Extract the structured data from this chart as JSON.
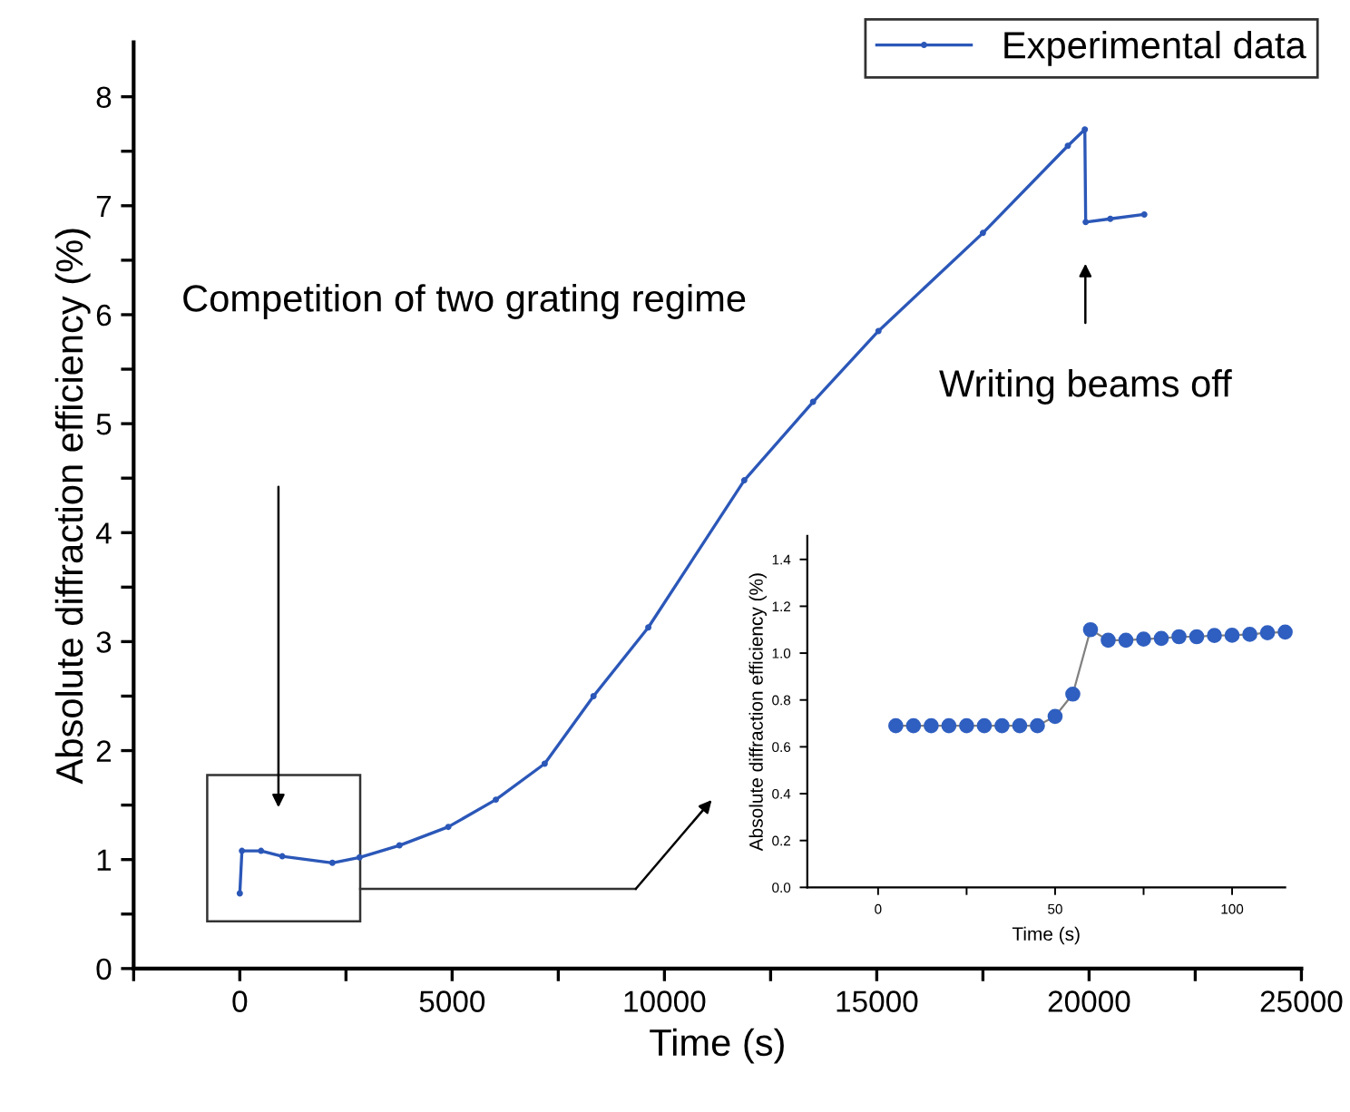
{
  "chart_data": [
    {
      "type": "line",
      "xlabel": "Time (s)",
      "ylabel": "Absolute diffraction efficiency (%)",
      "series": [
        {
          "name": "Experimental data",
          "color": "#2b57b8",
          "x": [
            0,
            50,
            500,
            1000,
            2180,
            2820,
            3760,
            4910,
            6030,
            7180,
            8330,
            9620,
            11880,
            13500,
            15040,
            17500,
            19500,
            19900,
            19920,
            20500,
            21300
          ],
          "values": [
            0.69,
            1.08,
            1.08,
            1.03,
            0.97,
            1.02,
            1.13,
            1.3,
            1.55,
            1.88,
            2.5,
            3.13,
            4.48,
            5.2,
            5.85,
            6.75,
            7.55,
            7.7,
            6.85,
            6.88,
            6.92
          ]
        }
      ],
      "xlim": [
        -2500,
        25000
      ],
      "ylim": [
        0,
        8.5
      ],
      "xticks": [
        {
          "value": -2500,
          "label": null
        },
        0,
        {
          "value": 2500,
          "label": null
        },
        5000,
        {
          "value": 7500,
          "label": null
        },
        10000,
        {
          "value": 12500,
          "label": null
        },
        15000,
        {
          "value": 17500,
          "label": null
        },
        20000,
        {
          "value": 22500,
          "label": null
        },
        25000
      ],
      "yticks": [
        0,
        {
          "value": 0.5,
          "label": null
        },
        1,
        {
          "value": 1.5,
          "label": null
        },
        2,
        {
          "value": 2.5,
          "label": null
        },
        3,
        {
          "value": 3.5,
          "label": null
        },
        4,
        {
          "value": 4.5,
          "label": null
        },
        5,
        {
          "value": 5.5,
          "label": null
        },
        6,
        {
          "value": 6.5,
          "label": null
        },
        7,
        {
          "value": 7.5,
          "label": null
        },
        8
      ],
      "annotations": [
        "Competition of two grating regime",
        "Writing beams off"
      ],
      "legend": "top right",
      "grid": false,
      "marker": "circle",
      "line_style": "solid"
    },
    {
      "type": "line",
      "xlabel": "Time (s)",
      "ylabel": "Absolute diffraction efficiency (%)",
      "series": [
        {
          "color": "#2f5fc0",
          "x": [
            5,
            10,
            15,
            20,
            25,
            30,
            35,
            40,
            45,
            50,
            55,
            60,
            65,
            70,
            75,
            80,
            85,
            90,
            95,
            100,
            105,
            110,
            115
          ],
          "values": [
            0.69,
            0.69,
            0.69,
            0.69,
            0.69,
            0.69,
            0.69,
            0.69,
            0.69,
            0.73,
            0.825,
            1.1,
            1.055,
            1.055,
            1.06,
            1.063,
            1.07,
            1.07,
            1.075,
            1.076,
            1.08,
            1.087,
            1.09
          ]
        }
      ],
      "xlim": [
        -20,
        115
      ],
      "ylim": [
        0,
        1.5
      ],
      "xticks": [
        0,
        {
          "value": 25,
          "label": null
        },
        50,
        {
          "value": 75,
          "label": null
        },
        100
      ],
      "yticks": [
        {
          "value": 0,
          "label": "0.0"
        },
        {
          "value": 0.2,
          "label": "0.2"
        },
        {
          "value": 0.4,
          "label": "0.4"
        },
        {
          "value": 0.6,
          "label": "0.6"
        },
        {
          "value": 0.8,
          "label": "0.8"
        },
        {
          "value": 1.0,
          "label": "1.0"
        },
        {
          "value": 1.2,
          "label": "1.2"
        },
        {
          "value": 1.4,
          "label": "1.4"
        }
      ],
      "grid": false,
      "marker": "circle",
      "line_style": "solid"
    }
  ]
}
